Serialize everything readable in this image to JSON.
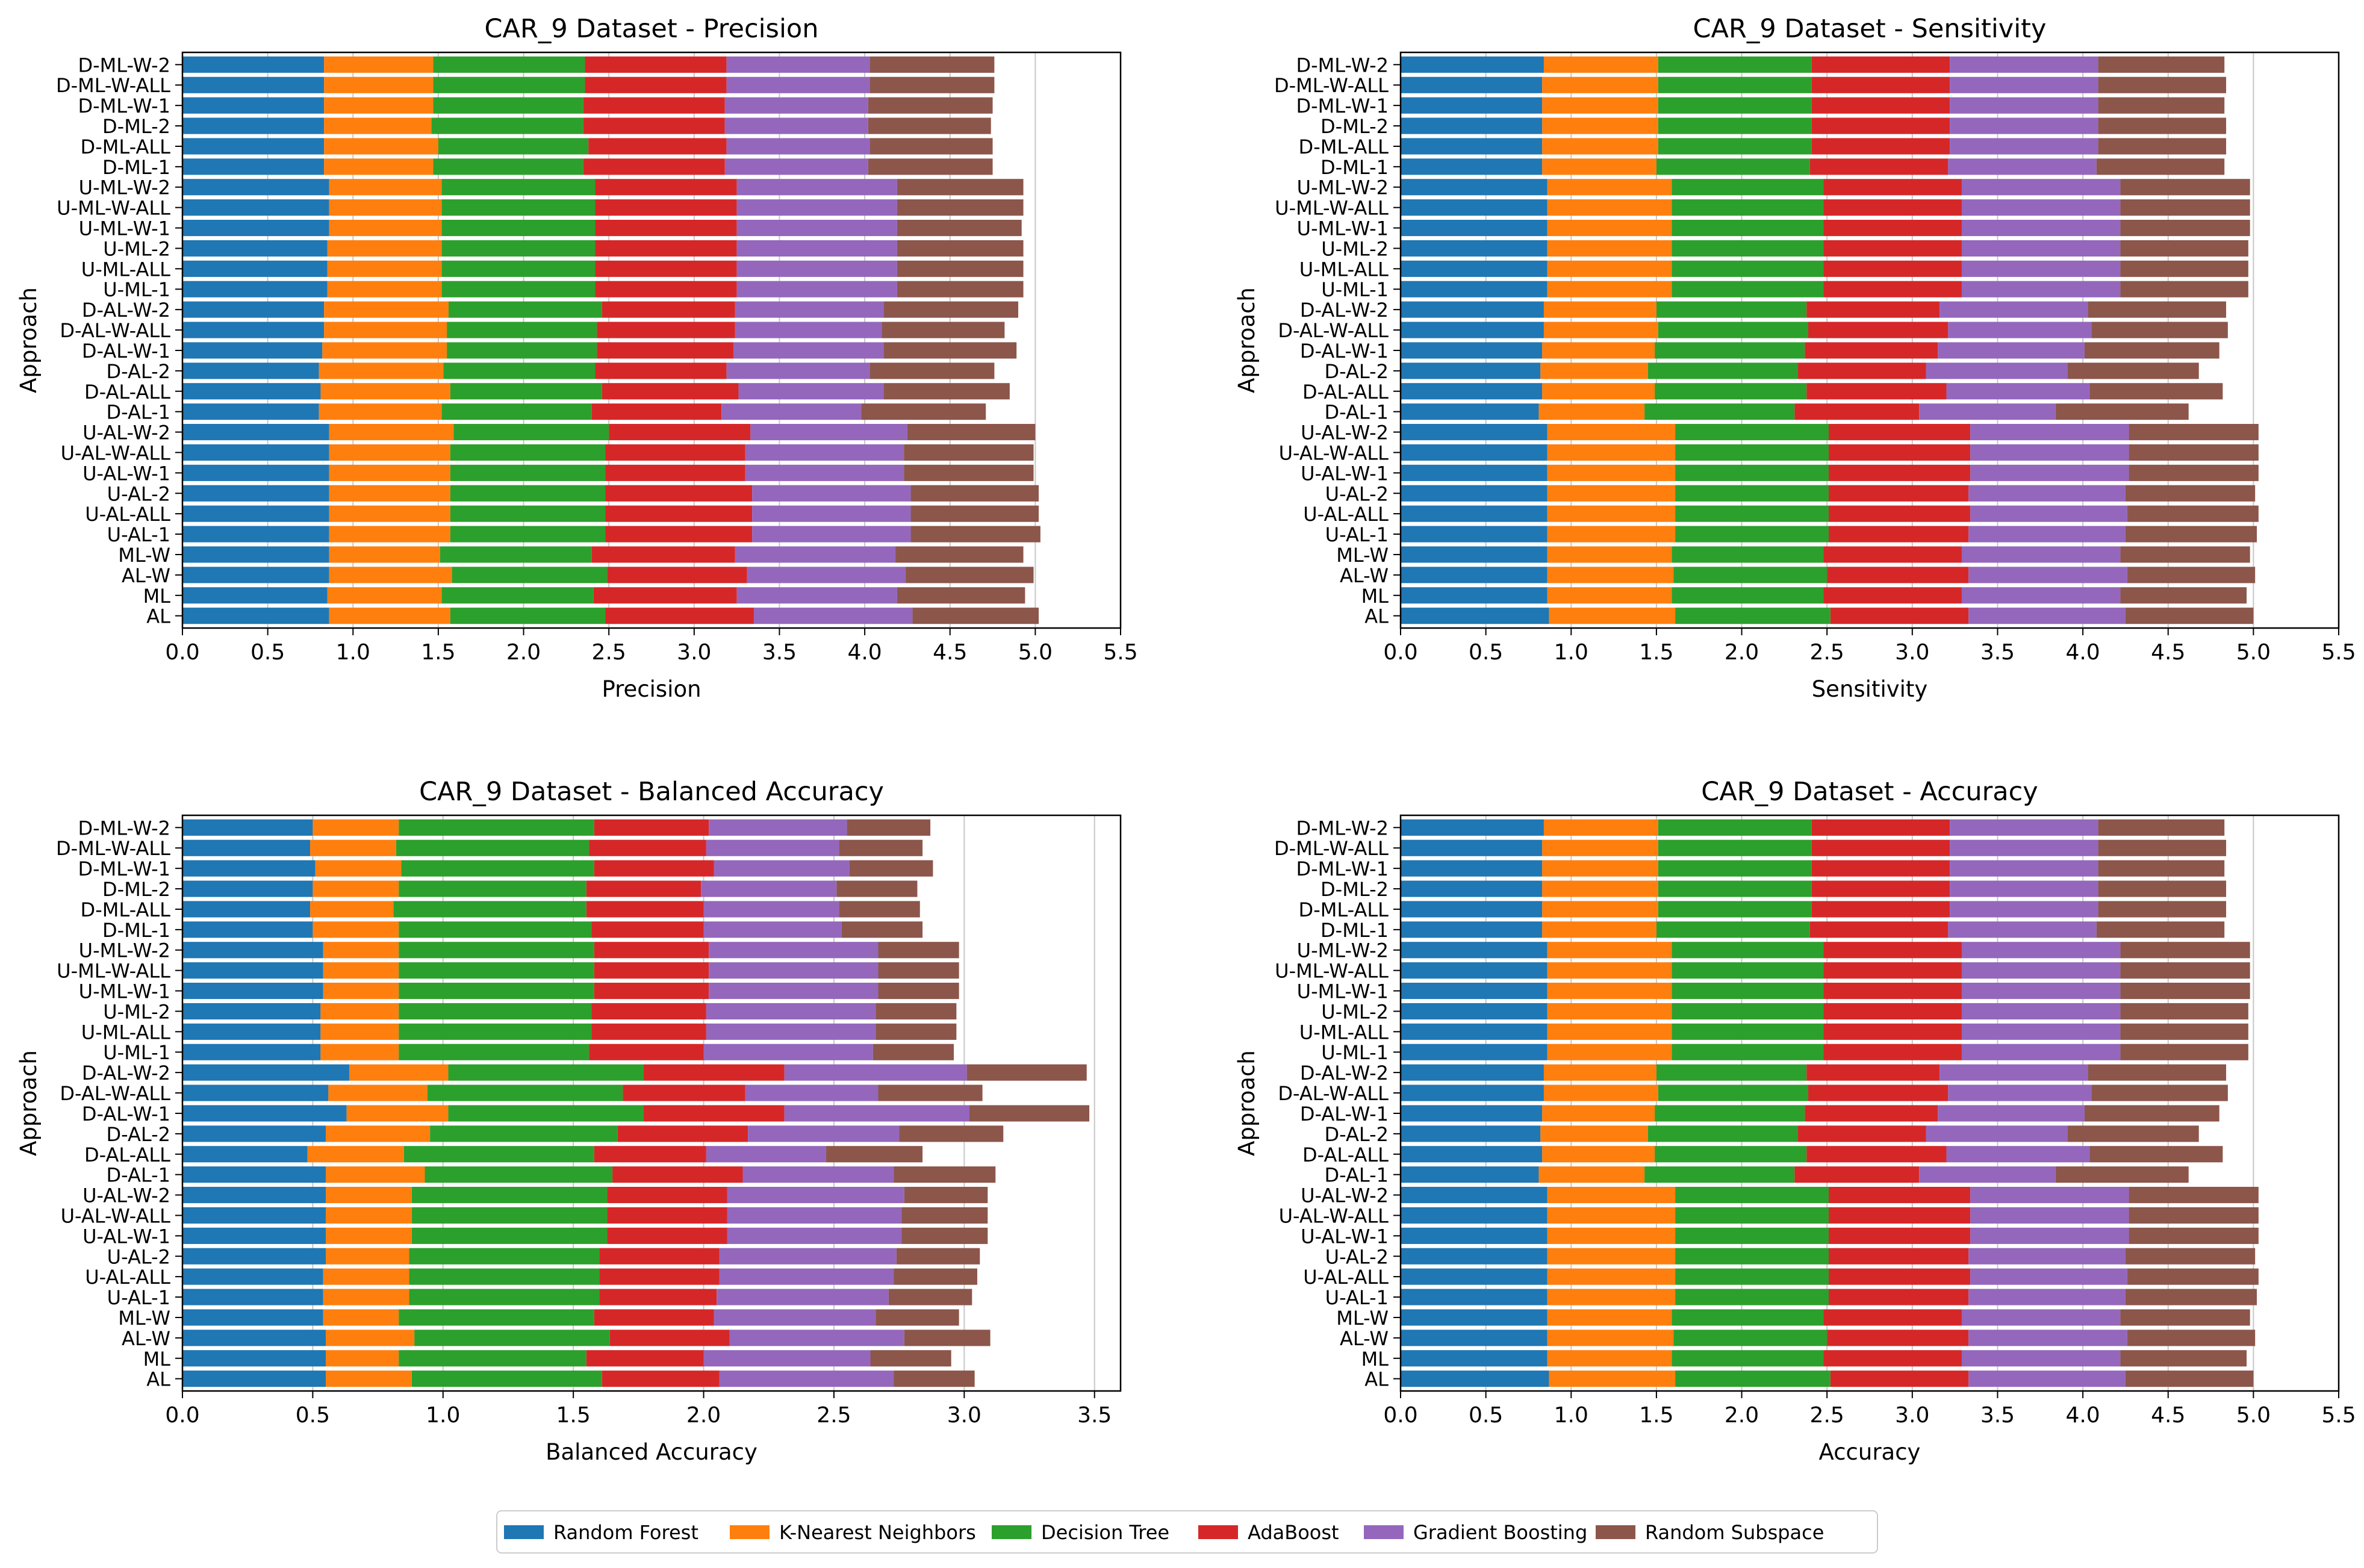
{
  "figure": {
    "series_colors": [
      "#1f77b4",
      "#ff7f0e",
      "#2ca02c",
      "#d62728",
      "#9467bd",
      "#8c564b"
    ],
    "legend_position": "bottom-center"
  },
  "chart_data": [
    {
      "type": "bar",
      "orientation": "horizontal",
      "stacked": true,
      "title": "CAR_9 Dataset - Precision",
      "xlabel": "Precision",
      "ylabel": "Approach",
      "xlim": [
        0,
        5.5
      ],
      "xticks": [
        "0.0",
        "0.5",
        "1.0",
        "1.5",
        "2.0",
        "2.5",
        "3.0",
        "3.5",
        "4.0",
        "4.5",
        "5.0",
        "5.5"
      ],
      "grid": "x",
      "categories": [
        "D-ML-W-2",
        "D-ML-W-ALL",
        "D-ML-W-1",
        "D-ML-2",
        "D-ML-ALL",
        "D-ML-1",
        "U-ML-W-2",
        "U-ML-W-ALL",
        "U-ML-W-1",
        "U-ML-2",
        "U-ML-ALL",
        "U-ML-1",
        "D-AL-W-2",
        "D-AL-W-ALL",
        "D-AL-W-1",
        "D-AL-2",
        "D-AL-ALL",
        "D-AL-1",
        "U-AL-W-2",
        "U-AL-W-ALL",
        "U-AL-W-1",
        "U-AL-2",
        "U-AL-ALL",
        "U-AL-1",
        "ML-W",
        "AL-W",
        "ML",
        "AL"
      ],
      "series": [
        {
          "name": "Random Forest",
          "values": [
            0.83,
            0.83,
            0.83,
            0.83,
            0.83,
            0.83,
            0.86,
            0.86,
            0.86,
            0.85,
            0.85,
            0.85,
            0.83,
            0.83,
            0.82,
            0.8,
            0.81,
            0.8,
            0.86,
            0.86,
            0.86,
            0.86,
            0.86,
            0.86,
            0.86,
            0.86,
            0.85,
            0.86
          ]
        },
        {
          "name": "K-Nearest Neighbors",
          "values": [
            0.64,
            0.64,
            0.64,
            0.63,
            0.67,
            0.64,
            0.66,
            0.66,
            0.66,
            0.67,
            0.67,
            0.67,
            0.73,
            0.72,
            0.73,
            0.73,
            0.76,
            0.72,
            0.73,
            0.71,
            0.71,
            0.71,
            0.71,
            0.71,
            0.65,
            0.72,
            0.67,
            0.71
          ]
        },
        {
          "name": "Decision Tree",
          "values": [
            0.89,
            0.89,
            0.88,
            0.89,
            0.88,
            0.88,
            0.9,
            0.9,
            0.9,
            0.9,
            0.9,
            0.9,
            0.9,
            0.88,
            0.88,
            0.89,
            0.89,
            0.88,
            0.91,
            0.91,
            0.91,
            0.91,
            0.91,
            0.91,
            0.89,
            0.91,
            0.89,
            0.91
          ]
        },
        {
          "name": "AdaBoost",
          "values": [
            0.83,
            0.83,
            0.83,
            0.83,
            0.81,
            0.83,
            0.83,
            0.83,
            0.83,
            0.83,
            0.83,
            0.83,
            0.78,
            0.81,
            0.8,
            0.77,
            0.8,
            0.76,
            0.83,
            0.82,
            0.82,
            0.86,
            0.86,
            0.86,
            0.84,
            0.82,
            0.84,
            0.87
          ]
        },
        {
          "name": "Gradient Boosting",
          "values": [
            0.84,
            0.84,
            0.84,
            0.84,
            0.84,
            0.84,
            0.94,
            0.94,
            0.94,
            0.94,
            0.94,
            0.94,
            0.87,
            0.86,
            0.88,
            0.84,
            0.85,
            0.82,
            0.92,
            0.93,
            0.93,
            0.93,
            0.93,
            0.93,
            0.94,
            0.93,
            0.94,
            0.93
          ]
        },
        {
          "name": "Random Subspace",
          "values": [
            0.73,
            0.73,
            0.73,
            0.72,
            0.72,
            0.73,
            0.74,
            0.74,
            0.73,
            0.74,
            0.74,
            0.74,
            0.79,
            0.72,
            0.78,
            0.73,
            0.74,
            0.73,
            0.75,
            0.76,
            0.76,
            0.75,
            0.75,
            0.76,
            0.75,
            0.75,
            0.75,
            0.74
          ]
        }
      ]
    },
    {
      "type": "bar",
      "orientation": "horizontal",
      "stacked": true,
      "title": "CAR_9 Dataset - Sensitivity",
      "xlabel": "Sensitivity",
      "ylabel": "Approach",
      "xlim": [
        0,
        5.5
      ],
      "xticks": [
        "0.0",
        "0.5",
        "1.0",
        "1.5",
        "2.0",
        "2.5",
        "3.0",
        "3.5",
        "4.0",
        "4.5",
        "5.0",
        "5.5"
      ],
      "grid": "x",
      "categories": [
        "D-ML-W-2",
        "D-ML-W-ALL",
        "D-ML-W-1",
        "D-ML-2",
        "D-ML-ALL",
        "D-ML-1",
        "U-ML-W-2",
        "U-ML-W-ALL",
        "U-ML-W-1",
        "U-ML-2",
        "U-ML-ALL",
        "U-ML-1",
        "D-AL-W-2",
        "D-AL-W-ALL",
        "D-AL-W-1",
        "D-AL-2",
        "D-AL-ALL",
        "D-AL-1",
        "U-AL-W-2",
        "U-AL-W-ALL",
        "U-AL-W-1",
        "U-AL-2",
        "U-AL-ALL",
        "U-AL-1",
        "ML-W",
        "AL-W",
        "ML",
        "AL"
      ],
      "series": [
        {
          "name": "Random Forest",
          "values": [
            0.84,
            0.83,
            0.83,
            0.83,
            0.83,
            0.83,
            0.86,
            0.86,
            0.86,
            0.86,
            0.86,
            0.86,
            0.84,
            0.84,
            0.83,
            0.82,
            0.83,
            0.81,
            0.86,
            0.86,
            0.86,
            0.86,
            0.86,
            0.86,
            0.86,
            0.86,
            0.86,
            0.87
          ]
        },
        {
          "name": "K-Nearest Neighbors",
          "values": [
            0.67,
            0.68,
            0.68,
            0.68,
            0.68,
            0.67,
            0.73,
            0.73,
            0.73,
            0.73,
            0.73,
            0.73,
            0.66,
            0.67,
            0.66,
            0.63,
            0.66,
            0.62,
            0.75,
            0.75,
            0.75,
            0.75,
            0.75,
            0.75,
            0.73,
            0.74,
            0.73,
            0.74
          ]
        },
        {
          "name": "Decision Tree",
          "values": [
            0.9,
            0.9,
            0.9,
            0.9,
            0.9,
            0.9,
            0.89,
            0.89,
            0.89,
            0.89,
            0.89,
            0.89,
            0.88,
            0.88,
            0.88,
            0.88,
            0.89,
            0.88,
            0.9,
            0.9,
            0.9,
            0.9,
            0.9,
            0.9,
            0.89,
            0.9,
            0.89,
            0.91
          ]
        },
        {
          "name": "AdaBoost",
          "values": [
            0.81,
            0.81,
            0.81,
            0.81,
            0.81,
            0.81,
            0.81,
            0.81,
            0.81,
            0.81,
            0.81,
            0.81,
            0.78,
            0.82,
            0.78,
            0.75,
            0.82,
            0.73,
            0.83,
            0.83,
            0.83,
            0.82,
            0.83,
            0.82,
            0.81,
            0.83,
            0.81,
            0.81
          ]
        },
        {
          "name": "Gradient Boosting",
          "values": [
            0.87,
            0.87,
            0.87,
            0.87,
            0.87,
            0.87,
            0.93,
            0.93,
            0.93,
            0.93,
            0.93,
            0.93,
            0.87,
            0.84,
            0.86,
            0.83,
            0.84,
            0.8,
            0.93,
            0.93,
            0.93,
            0.92,
            0.92,
            0.92,
            0.93,
            0.93,
            0.93,
            0.92
          ]
        },
        {
          "name": "Random Subspace",
          "values": [
            0.74,
            0.75,
            0.74,
            0.75,
            0.75,
            0.75,
            0.76,
            0.76,
            0.76,
            0.75,
            0.75,
            0.75,
            0.81,
            0.8,
            0.79,
            0.77,
            0.78,
            0.78,
            0.76,
            0.76,
            0.76,
            0.76,
            0.77,
            0.77,
            0.76,
            0.75,
            0.74,
            0.75
          ]
        }
      ]
    },
    {
      "type": "bar",
      "orientation": "horizontal",
      "stacked": true,
      "title": "CAR_9 Dataset - Balanced Accuracy",
      "xlabel": "Balanced Accuracy",
      "ylabel": "Approach",
      "xlim": [
        0,
        3.6
      ],
      "xticks": [
        "0.0",
        "0.5",
        "1.0",
        "1.5",
        "2.0",
        "2.5",
        "3.0",
        "3.5"
      ],
      "grid": "x",
      "categories": [
        "D-ML-W-2",
        "D-ML-W-ALL",
        "D-ML-W-1",
        "D-ML-2",
        "D-ML-ALL",
        "D-ML-1",
        "U-ML-W-2",
        "U-ML-W-ALL",
        "U-ML-W-1",
        "U-ML-2",
        "U-ML-ALL",
        "U-ML-1",
        "D-AL-W-2",
        "D-AL-W-ALL",
        "D-AL-W-1",
        "D-AL-2",
        "D-AL-ALL",
        "D-AL-1",
        "U-AL-W-2",
        "U-AL-W-ALL",
        "U-AL-W-1",
        "U-AL-2",
        "U-AL-ALL",
        "U-AL-1",
        "ML-W",
        "AL-W",
        "ML",
        "AL"
      ],
      "series": [
        {
          "name": "Random Forest",
          "values": [
            0.5,
            0.49,
            0.51,
            0.5,
            0.49,
            0.5,
            0.54,
            0.54,
            0.54,
            0.53,
            0.53,
            0.53,
            0.64,
            0.56,
            0.63,
            0.55,
            0.48,
            0.55,
            0.55,
            0.55,
            0.55,
            0.55,
            0.54,
            0.54,
            0.54,
            0.55,
            0.55,
            0.55
          ]
        },
        {
          "name": "K-Nearest Neighbors",
          "values": [
            0.33,
            0.33,
            0.33,
            0.33,
            0.32,
            0.33,
            0.29,
            0.29,
            0.29,
            0.3,
            0.3,
            0.3,
            0.38,
            0.38,
            0.39,
            0.4,
            0.37,
            0.38,
            0.33,
            0.33,
            0.33,
            0.32,
            0.33,
            0.33,
            0.29,
            0.34,
            0.28,
            0.33
          ]
        },
        {
          "name": "Decision Tree",
          "values": [
            0.75,
            0.74,
            0.74,
            0.72,
            0.74,
            0.74,
            0.75,
            0.75,
            0.75,
            0.74,
            0.74,
            0.73,
            0.75,
            0.75,
            0.75,
            0.72,
            0.73,
            0.72,
            0.75,
            0.75,
            0.75,
            0.73,
            0.73,
            0.73,
            0.75,
            0.75,
            0.72,
            0.73
          ]
        },
        {
          "name": "AdaBoost",
          "values": [
            0.44,
            0.45,
            0.46,
            0.44,
            0.45,
            0.43,
            0.44,
            0.44,
            0.44,
            0.44,
            0.44,
            0.44,
            0.54,
            0.47,
            0.54,
            0.5,
            0.43,
            0.5,
            0.46,
            0.46,
            0.46,
            0.46,
            0.46,
            0.45,
            0.46,
            0.46,
            0.45,
            0.45
          ]
        },
        {
          "name": "Gradient Boosting",
          "values": [
            0.53,
            0.51,
            0.52,
            0.52,
            0.52,
            0.53,
            0.65,
            0.65,
            0.65,
            0.65,
            0.65,
            0.65,
            0.7,
            0.51,
            0.71,
            0.58,
            0.46,
            0.58,
            0.68,
            0.67,
            0.67,
            0.68,
            0.67,
            0.66,
            0.62,
            0.67,
            0.64,
            0.67
          ]
        },
        {
          "name": "Random Subspace",
          "values": [
            0.32,
            0.32,
            0.32,
            0.31,
            0.31,
            0.31,
            0.31,
            0.31,
            0.31,
            0.31,
            0.31,
            0.31,
            0.46,
            0.4,
            0.46,
            0.4,
            0.37,
            0.39,
            0.32,
            0.33,
            0.33,
            0.32,
            0.32,
            0.32,
            0.32,
            0.33,
            0.31,
            0.31
          ]
        }
      ]
    },
    {
      "type": "bar",
      "orientation": "horizontal",
      "stacked": true,
      "title": "CAR_9 Dataset - Accuracy",
      "xlabel": "Accuracy",
      "ylabel": "Approach",
      "xlim": [
        0,
        5.5
      ],
      "xticks": [
        "0.0",
        "0.5",
        "1.0",
        "1.5",
        "2.0",
        "2.5",
        "3.0",
        "3.5",
        "4.0",
        "4.5",
        "5.0",
        "5.5"
      ],
      "grid": "x",
      "categories": [
        "D-ML-W-2",
        "D-ML-W-ALL",
        "D-ML-W-1",
        "D-ML-2",
        "D-ML-ALL",
        "D-ML-1",
        "U-ML-W-2",
        "U-ML-W-ALL",
        "U-ML-W-1",
        "U-ML-2",
        "U-ML-ALL",
        "U-ML-1",
        "D-AL-W-2",
        "D-AL-W-ALL",
        "D-AL-W-1",
        "D-AL-2",
        "D-AL-ALL",
        "D-AL-1",
        "U-AL-W-2",
        "U-AL-W-ALL",
        "U-AL-W-1",
        "U-AL-2",
        "U-AL-ALL",
        "U-AL-1",
        "ML-W",
        "AL-W",
        "ML",
        "AL"
      ],
      "series": [
        {
          "name": "Random Forest",
          "values": [
            0.84,
            0.83,
            0.83,
            0.83,
            0.83,
            0.83,
            0.86,
            0.86,
            0.86,
            0.86,
            0.86,
            0.86,
            0.84,
            0.84,
            0.83,
            0.82,
            0.83,
            0.81,
            0.86,
            0.86,
            0.86,
            0.86,
            0.86,
            0.86,
            0.86,
            0.86,
            0.86,
            0.87
          ]
        },
        {
          "name": "K-Nearest Neighbors",
          "values": [
            0.67,
            0.68,
            0.68,
            0.68,
            0.68,
            0.67,
            0.73,
            0.73,
            0.73,
            0.73,
            0.73,
            0.73,
            0.66,
            0.67,
            0.66,
            0.63,
            0.66,
            0.62,
            0.75,
            0.75,
            0.75,
            0.75,
            0.75,
            0.75,
            0.73,
            0.74,
            0.73,
            0.74
          ]
        },
        {
          "name": "Decision Tree",
          "values": [
            0.9,
            0.9,
            0.9,
            0.9,
            0.9,
            0.9,
            0.89,
            0.89,
            0.89,
            0.89,
            0.89,
            0.89,
            0.88,
            0.88,
            0.88,
            0.88,
            0.89,
            0.88,
            0.9,
            0.9,
            0.9,
            0.9,
            0.9,
            0.9,
            0.89,
            0.9,
            0.89,
            0.91
          ]
        },
        {
          "name": "AdaBoost",
          "values": [
            0.81,
            0.81,
            0.81,
            0.81,
            0.81,
            0.81,
            0.81,
            0.81,
            0.81,
            0.81,
            0.81,
            0.81,
            0.78,
            0.82,
            0.78,
            0.75,
            0.82,
            0.73,
            0.83,
            0.83,
            0.83,
            0.82,
            0.83,
            0.82,
            0.81,
            0.83,
            0.81,
            0.81
          ]
        },
        {
          "name": "Gradient Boosting",
          "values": [
            0.87,
            0.87,
            0.87,
            0.87,
            0.87,
            0.87,
            0.93,
            0.93,
            0.93,
            0.93,
            0.93,
            0.93,
            0.87,
            0.84,
            0.86,
            0.83,
            0.84,
            0.8,
            0.93,
            0.93,
            0.93,
            0.92,
            0.92,
            0.92,
            0.93,
            0.93,
            0.93,
            0.92
          ]
        },
        {
          "name": "Random Subspace",
          "values": [
            0.74,
            0.75,
            0.74,
            0.75,
            0.75,
            0.75,
            0.76,
            0.76,
            0.76,
            0.75,
            0.75,
            0.75,
            0.81,
            0.8,
            0.79,
            0.77,
            0.78,
            0.78,
            0.76,
            0.76,
            0.76,
            0.76,
            0.77,
            0.77,
            0.76,
            0.75,
            0.74,
            0.75
          ]
        }
      ]
    }
  ]
}
